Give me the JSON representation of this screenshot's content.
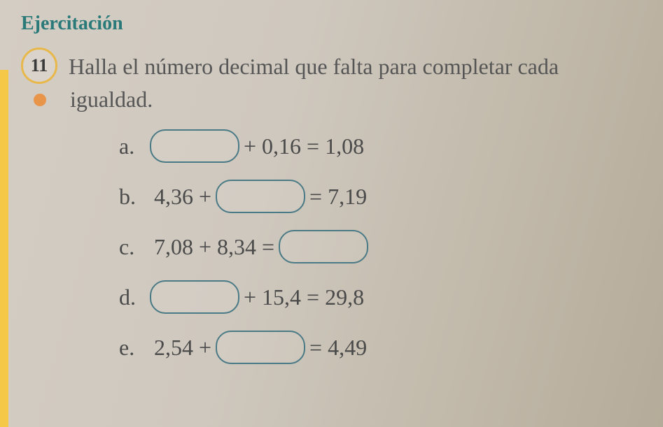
{
  "section_title": "Ejercitación",
  "section_title_color": "#2b7a7a",
  "problem_number": "11",
  "circle_border_color": "#e8b84a",
  "problem_line1": "Halla el número decimal que falta para completar cada",
  "problem_line2": "igualdad.",
  "bullet_color": "#e8954a",
  "blank_border_color": "#4a7a85",
  "equations": {
    "a": {
      "label": "a.",
      "before": "",
      "mid": "+ 0,16 = 1,08",
      "after": "",
      "blank_pos": "start"
    },
    "b": {
      "label": "b.",
      "before": "4,36 +",
      "mid": "",
      "after": "= 7,19",
      "blank_pos": "mid"
    },
    "c": {
      "label": "c.",
      "before": "7,08 + 8,34 =",
      "mid": "",
      "after": "",
      "blank_pos": "end"
    },
    "d": {
      "label": "d.",
      "before": "",
      "mid": "+ 15,4 = 29,8",
      "after": "",
      "blank_pos": "start"
    },
    "e": {
      "label": "e.",
      "before": "2,54 +",
      "mid": "",
      "after": "= 4,49",
      "blank_pos": "mid"
    }
  }
}
